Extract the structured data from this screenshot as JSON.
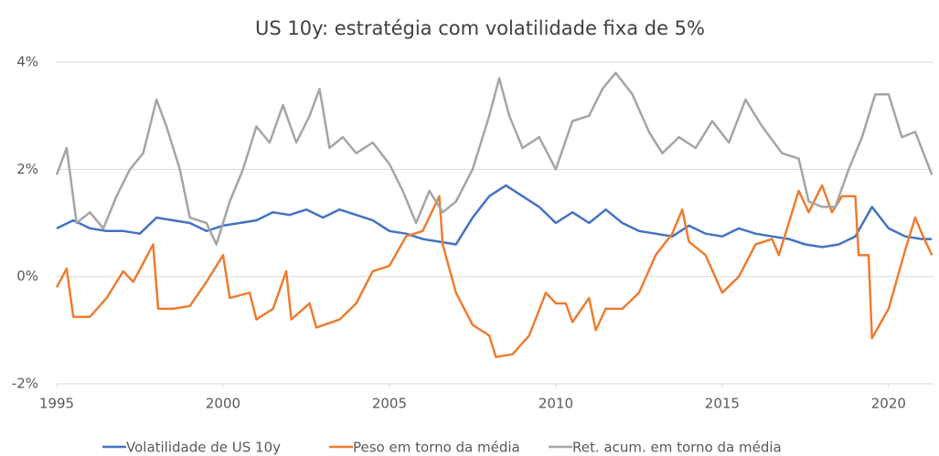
{
  "chart_data": {
    "type": "line",
    "title": "US 10y: estratégia com volatilidade fixa de 5%",
    "xlim": [
      1995,
      2021.35
    ],
    "xticks": [
      1995,
      2000,
      2005,
      2010,
      2015,
      2020
    ],
    "ylim": [
      -2,
      4
    ],
    "yticks": [
      {
        "value": -2,
        "label": "-2%"
      },
      {
        "value": 0,
        "label": "0%"
      },
      {
        "value": 2,
        "label": "2%"
      },
      {
        "value": 4,
        "label": "4%"
      }
    ],
    "grid": true,
    "legend": "bottom",
    "series": [
      {
        "name": "Volatilidade de US 10y",
        "color": "#4472c4",
        "x": [
          1995,
          1995.5,
          1996,
          1996.5,
          1997,
          1997.5,
          1998,
          1998.5,
          1999,
          1999.5,
          2000,
          2000.5,
          2001,
          2001.5,
          2002,
          2002.5,
          2003,
          2003.5,
          2004,
          2004.5,
          2005,
          2005.5,
          2006,
          2006.5,
          2007,
          2007.5,
          2008,
          2008.5,
          2009,
          2009.5,
          2010,
          2010.5,
          2011,
          2011.5,
          2012,
          2012.5,
          2013,
          2013.5,
          2014,
          2014.5,
          2015,
          2015.5,
          2016,
          2016.5,
          2017,
          2017.5,
          2018,
          2018.5,
          2019,
          2019.5,
          2020,
          2020.5,
          2021,
          2021.3
        ],
        "values": [
          0.9,
          1.05,
          0.9,
          0.85,
          0.85,
          0.8,
          1.1,
          1.05,
          1.0,
          0.85,
          0.95,
          1.0,
          1.05,
          1.2,
          1.15,
          1.25,
          1.1,
          1.25,
          1.15,
          1.05,
          0.85,
          0.8,
          0.7,
          0.65,
          0.6,
          1.1,
          1.5,
          1.7,
          1.5,
          1.3,
          1.0,
          1.2,
          1.0,
          1.25,
          1.0,
          0.85,
          0.8,
          0.75,
          0.95,
          0.8,
          0.75,
          0.9,
          0.8,
          0.75,
          0.7,
          0.6,
          0.55,
          0.6,
          0.75,
          1.3,
          0.9,
          0.75,
          0.7,
          0.7
        ]
      },
      {
        "name": "Peso em torno da média",
        "color": "#ed7d31",
        "x": [
          1995,
          1995.3,
          1995.5,
          1996,
          1996.5,
          1997,
          1997.3,
          1997.9,
          1998.05,
          1998.5,
          1999,
          1999.5,
          2000,
          2000.2,
          2000.8,
          2001,
          2001.5,
          2001.9,
          2002.05,
          2002.6,
          2002.8,
          2003.5,
          2004,
          2004.5,
          2005,
          2005.5,
          2006,
          2006.5,
          2006.6,
          2007,
          2007.5,
          2008,
          2008.2,
          2008.7,
          2009.2,
          2009.7,
          2010,
          2010.3,
          2010.5,
          2011,
          2011.2,
          2011.5,
          2012,
          2012.5,
          2013,
          2013.5,
          2013.8,
          2014,
          2014.5,
          2015,
          2015.5,
          2016,
          2016.5,
          2016.7,
          2017,
          2017.3,
          2017.6,
          2018,
          2018.3,
          2018.6,
          2019,
          2019.1,
          2019.4,
          2019.5,
          2020,
          2020.5,
          2020.8,
          2021,
          2021.3
        ],
        "values": [
          -0.2,
          0.15,
          -0.75,
          -0.75,
          -0.4,
          0.1,
          -0.1,
          0.6,
          -0.6,
          -0.6,
          -0.55,
          -0.1,
          0.4,
          -0.4,
          -0.3,
          -0.8,
          -0.6,
          0.1,
          -0.8,
          -0.5,
          -0.95,
          -0.8,
          -0.5,
          0.1,
          0.2,
          0.75,
          0.85,
          1.5,
          0.6,
          -0.3,
          -0.9,
          -1.1,
          -1.5,
          -1.45,
          -1.1,
          -0.3,
          -0.5,
          -0.5,
          -0.85,
          -0.4,
          -1.0,
          -0.6,
          -0.6,
          -0.3,
          0.4,
          0.8,
          1.25,
          0.65,
          0.4,
          -0.3,
          0.0,
          0.6,
          0.7,
          0.4,
          1.0,
          1.6,
          1.2,
          1.7,
          1.2,
          1.5,
          1.5,
          0.4,
          0.4,
          -1.15,
          -0.6,
          0.5,
          1.1,
          0.8,
          0.4
        ]
      },
      {
        "name": "Ret. acum. em torno da média",
        "color": "#a5a5a5",
        "x": [
          1995,
          1995.3,
          1995.6,
          1996,
          1996.4,
          1996.8,
          1997.2,
          1997.6,
          1998,
          1998.3,
          1998.7,
          1999,
          1999.5,
          1999.8,
          2000.2,
          2000.6,
          2001,
          2001.4,
          2001.8,
          2002.2,
          2002.6,
          2002.9,
          2003.2,
          2003.6,
          2004,
          2004.5,
          2005,
          2005.4,
          2005.8,
          2006.2,
          2006.6,
          2007,
          2007.5,
          2008,
          2008.3,
          2008.6,
          2009,
          2009.5,
          2010,
          2010.5,
          2011,
          2011.4,
          2011.8,
          2012.3,
          2012.8,
          2013.2,
          2013.7,
          2014.2,
          2014.7,
          2015.2,
          2015.7,
          2016.2,
          2016.8,
          2017.3,
          2017.6,
          2018,
          2018.4,
          2018.8,
          2019.2,
          2019.6,
          2020,
          2020.4,
          2020.8,
          2021.3
        ],
        "values": [
          1.9,
          2.4,
          1.0,
          1.2,
          0.9,
          1.5,
          2.0,
          2.3,
          3.3,
          2.8,
          2.0,
          1.1,
          1.0,
          0.6,
          1.4,
          2.0,
          2.8,
          2.5,
          3.2,
          2.5,
          3.0,
          3.5,
          2.4,
          2.6,
          2.3,
          2.5,
          2.1,
          1.6,
          1.0,
          1.6,
          1.2,
          1.4,
          2.0,
          3.0,
          3.7,
          3.0,
          2.4,
          2.6,
          2.0,
          2.9,
          3.0,
          3.5,
          3.8,
          3.4,
          2.7,
          2.3,
          2.6,
          2.4,
          2.9,
          2.5,
          3.3,
          2.8,
          2.3,
          2.2,
          1.4,
          1.3,
          1.3,
          2.0,
          2.6,
          3.4,
          3.4,
          2.6,
          2.7,
          1.9
        ]
      }
    ]
  }
}
